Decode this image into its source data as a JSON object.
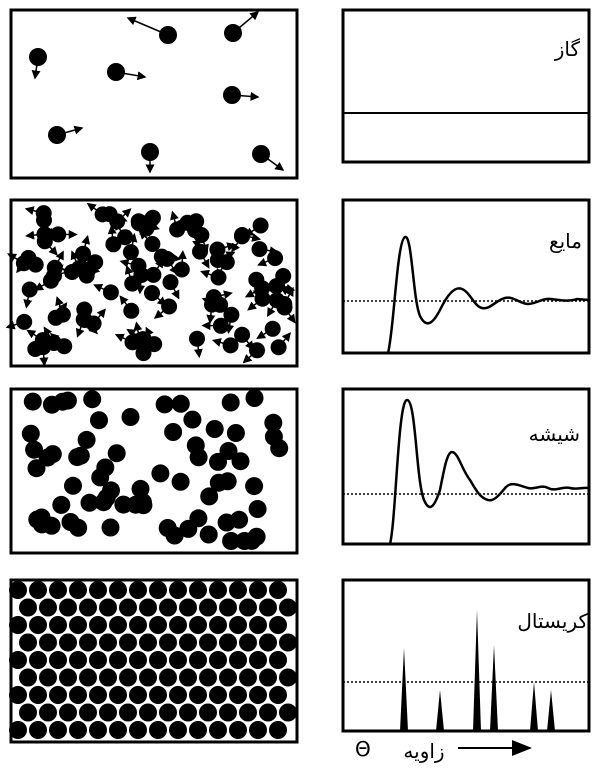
{
  "rows": [
    {
      "state": "gas",
      "label": "گاز"
    },
    {
      "state": "liquid",
      "label": "مایع"
    },
    {
      "state": "glass",
      "label": "شیشه"
    },
    {
      "state": "crystal",
      "label": "کریستال"
    }
  ],
  "x_axis": {
    "symbol": "Θ",
    "label": "زاویه"
  },
  "colors": {
    "ink": "#000000",
    "paper": "#ffffff"
  }
}
